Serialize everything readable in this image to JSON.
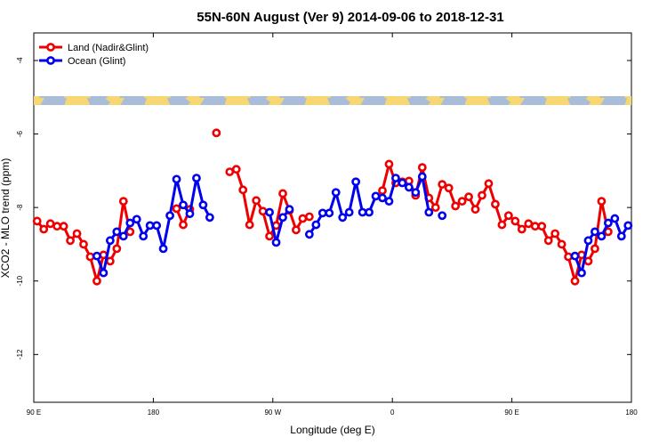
{
  "chart_data": {
    "type": "line",
    "title": "55N-60N August (Ver 9)   2014-09-06 to 2018-12-31",
    "x_label": "Longitude (deg E)",
    "y_label": "XCO2 - MLO trend (ppm)",
    "xlim": [
      90,
      540
    ],
    "xticks": [
      {
        "value": 90,
        "label": "90 E"
      },
      {
        "value": 180,
        "label": "180"
      },
      {
        "value": 270,
        "label": "90 W"
      },
      {
        "value": 360,
        "label": "0"
      },
      {
        "value": 450,
        "label": "90 E"
      },
      {
        "value": 540,
        "label": "180"
      }
    ],
    "ylim": [
      -13.3,
      -3.25
    ],
    "yticks": [
      -4,
      -6,
      -8,
      -10,
      -12
    ],
    "legend": "top-left",
    "x": [
      92.5,
      97.5,
      102.5,
      107.5,
      112.5,
      117.5,
      122.5,
      127.5,
      132.5,
      137.5,
      142.5,
      147.5,
      152.5,
      157.5,
      162.5,
      167.5,
      172.5,
      177.5,
      182.5,
      187.5,
      192.5,
      197.5,
      202.5,
      207.5,
      212.5,
      217.5,
      222.5,
      227.5,
      232.5,
      237.5,
      242.5,
      247.5,
      252.5,
      257.5,
      262.5,
      267.5,
      272.5,
      277.5,
      282.5,
      287.5,
      292.5,
      297.5,
      302.5,
      307.5,
      312.5,
      317.5,
      322.5,
      327.5,
      332.5,
      337.5,
      342.5,
      347.5,
      352.5,
      357.5,
      362.5,
      367.5,
      372.5,
      377.5,
      382.5,
      387.5,
      392.5,
      397.5,
      402.5,
      407.5,
      412.5,
      417.5,
      422.5,
      427.5,
      432.5,
      437.5,
      442.5,
      447.5,
      452.5,
      457.5,
      462.5,
      467.5,
      472.5,
      477.5,
      482.5,
      487.5,
      492.5,
      497.5,
      502.5,
      507.5,
      512.5,
      517.5,
      522.5,
      527.5,
      532.5,
      537.5
    ],
    "series": [
      {
        "name": "Land (Nadir&Glint)",
        "color": "#ee0000",
        "values": [
          -8.37,
          -8.59,
          -8.44,
          -8.51,
          -8.51,
          -8.9,
          -8.71,
          -9,
          -9.34,
          -10,
          -9.29,
          -9.46,
          -9.12,
          -7.83,
          -8.66,
          null,
          null,
          null,
          null,
          null,
          null,
          -8.03,
          -8.47,
          -8.05,
          null,
          null,
          null,
          -5.97,
          null,
          -7.03,
          -6.96,
          -7.52,
          -8.47,
          -7.81,
          -8.1,
          -8.78,
          -8.49,
          -7.62,
          -8.08,
          -8.61,
          -8.3,
          -8.25,
          null,
          null,
          null,
          null,
          null,
          null,
          null,
          null,
          null,
          null,
          -7.54,
          -6.82,
          -7.33,
          -7.3,
          -7.28,
          -7.67,
          -6.91,
          -7.74,
          -8,
          -7.37,
          -7.47,
          -7.96,
          -7.83,
          -7.71,
          -8.05,
          -7.67,
          -7.35,
          -7.91,
          -8.47,
          -8.22,
          -8.37,
          -8.59,
          -8.44,
          -8.51,
          -8.51,
          -8.9,
          -8.71,
          -9,
          -9.34,
          -10,
          -9.29,
          -9.46,
          -9.12,
          -7.83,
          -8.66,
          null,
          null,
          null
        ]
      },
      {
        "name": "Ocean (Glint)",
        "color": "#0000ee",
        "values": [
          null,
          null,
          null,
          null,
          null,
          null,
          null,
          null,
          null,
          -9.32,
          -9.78,
          -8.9,
          -8.66,
          -8.78,
          -8.42,
          -8.32,
          -8.78,
          -8.49,
          -8.49,
          -9.12,
          -8.22,
          -7.23,
          -7.93,
          -8.17,
          -7.2,
          -7.93,
          -8.27,
          null,
          null,
          null,
          null,
          null,
          null,
          null,
          null,
          -8.13,
          -8.95,
          -8.27,
          -8.05,
          null,
          null,
          -8.73,
          -8.47,
          -8.15,
          -8.15,
          -7.59,
          -8.27,
          -8.13,
          -7.3,
          -8.13,
          -8.13,
          -7.69,
          -7.74,
          -7.83,
          -7.2,
          -7.33,
          -7.45,
          -7.59,
          -7.16,
          -8.13,
          null,
          -8.22,
          null,
          null,
          null,
          null,
          null,
          null,
          null,
          null,
          null,
          null,
          null,
          null,
          null,
          null,
          null,
          null,
          null,
          null,
          null,
          -9.32,
          -9.78,
          -8.9,
          -8.66,
          -8.78,
          -8.42,
          -8.3,
          -8.78,
          -8.49
        ]
      }
    ]
  }
}
